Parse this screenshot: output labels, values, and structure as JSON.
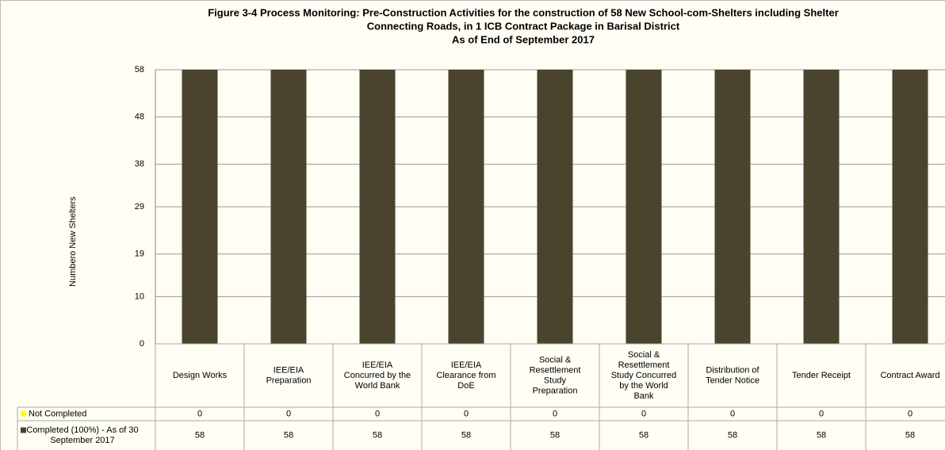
{
  "chart_data": {
    "type": "stacked_bar",
    "title": [
      "Figure 3-4  Process Monitoring: Pre-Construction Activities for the construction of 58 New School-com-Shelters including Shelter",
      "Connecting Roads, in 1 ICB Contract Package in Barisal District",
      "As of End of September 2017"
    ],
    "y_label": "Numbero New Shelters",
    "categories": [
      "Design Works",
      "IEE/EIA Preparation",
      "IEE/EIA Concurred by the World Bank",
      "IEE/EIA Clearance from DoE",
      "Social & Resettlement Study Preparation",
      "Social & Resettlement Study Concurred by the World Bank",
      "Distribution of Tender Notice",
      "Tender Receipt",
      "Contract Award"
    ],
    "series": [
      {
        "name": "Completed (100%) - As of 30 September 2017",
        "color": "#4a432d",
        "values": [
          58,
          58,
          58,
          58,
          58,
          58,
          58,
          58,
          58
        ]
      },
      {
        "name": "Not Completed",
        "color": "#ffff00",
        "values": [
          0,
          0,
          0,
          0,
          0,
          0,
          0,
          0,
          0
        ]
      }
    ],
    "ylim": [
      0,
      58
    ],
    "yticks": [
      0,
      10,
      19,
      29,
      38,
      48,
      58
    ],
    "grid": true,
    "data_table": true
  }
}
